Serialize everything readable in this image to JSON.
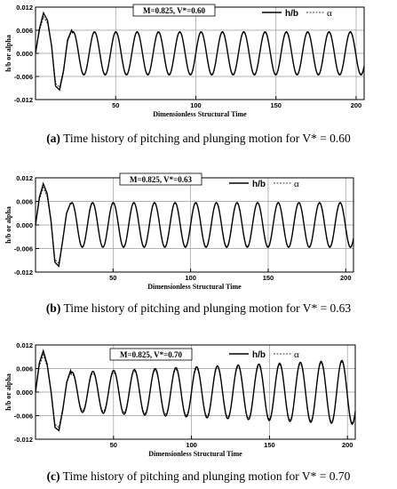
{
  "chart_data": [
    {
      "type": "line",
      "xlabel": "Dimensionless Structural Time",
      "ylabel": "h/b or alpha",
      "xlim": [
        0,
        205
      ],
      "ylim": [
        -0.012,
        0.012
      ],
      "xticks": [
        "50",
        "100",
        "150",
        "200"
      ],
      "yticks": [
        "0.012",
        "0.006",
        "0.000",
        "-0.006",
        "-0.012"
      ],
      "annotation": "M=0.825, V*=0.60",
      "legend": {
        "position": "top-right",
        "entries": [
          "h/b",
          "α"
        ]
      },
      "grid": true,
      "series": [
        {
          "name": "h/b",
          "style": "solid",
          "x": [
            0,
            2.5,
            5,
            7.5,
            10,
            12.5,
            15,
            17.5,
            20,
            22.5
          ],
          "y": [
            0.0,
            0.0065,
            0.0105,
            0.0085,
            0.002,
            -0.0085,
            -0.0095,
            -0.0045,
            0.0035,
            0.006
          ],
          "steady": {
            "amplitude": 0.0056,
            "period": 13.3,
            "decay_from": 20
          }
        },
        {
          "name": "α",
          "style": "dashed",
          "x": [
            0,
            2.5,
            5,
            7.5,
            10,
            12.5,
            15,
            17.5,
            20,
            22.5
          ],
          "y": [
            0.0,
            0.006,
            0.0095,
            0.0078,
            0.0018,
            -0.0078,
            -0.0088,
            -0.004,
            0.003,
            0.0058
          ],
          "steady": {
            "amplitude": 0.0054,
            "period": 13.3,
            "decay_from": 20
          }
        }
      ],
      "caption": {
        "label": "(a)",
        "text": " Time history of pitching and plunging motion for V* = 0.60"
      }
    },
    {
      "type": "line",
      "xlabel": "Dimensionless Structural Time",
      "ylabel": "h/b or alpha",
      "xlim": [
        0,
        205
      ],
      "ylim": [
        -0.012,
        0.012
      ],
      "xticks": [
        "50",
        "100",
        "150",
        "200"
      ],
      "yticks": [
        "0.012",
        "0.006",
        "0.000",
        "-0.006",
        "-0.012"
      ],
      "annotation": "M=0.825, V*=0.63",
      "legend": {
        "position": "top-right",
        "entries": [
          "h/b",
          "α"
        ]
      },
      "grid": true,
      "series": [
        {
          "name": "h/b",
          "style": "solid",
          "x": [
            0,
            2.5,
            5,
            7.5,
            10,
            12.5,
            15,
            17.5,
            20,
            22.5
          ],
          "y": [
            0.0,
            0.007,
            0.0105,
            0.008,
            0.001,
            -0.0095,
            -0.0105,
            -0.004,
            0.003,
            0.0055
          ],
          "steady": {
            "amplitude": 0.0057,
            "period": 13.3,
            "decay_from": 20
          }
        },
        {
          "name": "α",
          "style": "dashed",
          "x": [
            0,
            2.5,
            5,
            7.5,
            10,
            12.5,
            15,
            17.5,
            20,
            22.5
          ],
          "y": [
            0.0,
            0.0065,
            0.0095,
            0.0072,
            0.0008,
            -0.0088,
            -0.0098,
            -0.0038,
            0.0028,
            0.0053
          ],
          "steady": {
            "amplitude": 0.0055,
            "period": 13.3,
            "decay_from": 20
          }
        }
      ],
      "caption": {
        "label": "(b)",
        "text": " Time history of pitching and plunging motion for V* = 0.63"
      }
    },
    {
      "type": "line",
      "xlabel": "Dimensionless Structural Time",
      "ylabel": "h/b or alpha",
      "xlim": [
        0,
        205
      ],
      "ylim": [
        -0.012,
        0.012
      ],
      "xticks": [
        "50",
        "100",
        "150",
        "200"
      ],
      "yticks": [
        "0.012",
        "0.006",
        "0.000",
        "-0.006",
        "-0.012"
      ],
      "annotation": "M=0.825, V*=0.70",
      "legend": {
        "position": "top-right",
        "entries": [
          "h/b",
          "α"
        ]
      },
      "grid": true,
      "series": [
        {
          "name": "h/b",
          "style": "solid",
          "x": [
            0,
            2.5,
            5,
            7.5,
            10,
            12.5,
            15,
            17.5,
            20,
            22.5
          ],
          "y": [
            0.0,
            0.0075,
            0.0105,
            0.007,
            0.0,
            -0.009,
            -0.0098,
            -0.0045,
            0.0025,
            0.0055
          ],
          "steady": {
            "amplitude_start": 0.005,
            "amplitude_end": 0.0082,
            "period": 13.3,
            "decay_from": 20
          }
        },
        {
          "name": "α",
          "style": "dashed",
          "x": [
            0,
            2.5,
            5,
            7.5,
            10,
            12.5,
            15,
            17.5,
            20,
            22.5
          ],
          "y": [
            0.0,
            0.0068,
            0.0095,
            0.0065,
            0.0,
            -0.0082,
            -0.009,
            -0.004,
            0.0022,
            0.005
          ],
          "steady": {
            "amplitude_start": 0.0045,
            "amplitude_end": 0.0078,
            "period": 13.3,
            "decay_from": 20
          }
        }
      ],
      "caption": {
        "label": "(c)",
        "text": " Time history of pitching and plunging motion for V* = 0.70"
      }
    }
  ]
}
